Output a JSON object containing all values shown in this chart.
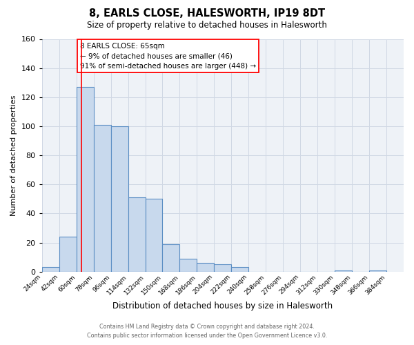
{
  "title": "8, EARLS CLOSE, HALESWORTH, IP19 8DT",
  "subtitle": "Size of property relative to detached houses in Halesworth",
  "xlabel": "Distribution of detached houses by size in Halesworth",
  "ylabel": "Number of detached properties",
  "bin_labels": [
    "24sqm",
    "42sqm",
    "60sqm",
    "78sqm",
    "96sqm",
    "114sqm",
    "132sqm",
    "150sqm",
    "168sqm",
    "186sqm",
    "204sqm",
    "222sqm",
    "240sqm",
    "258sqm",
    "276sqm",
    "294sqm",
    "312sqm",
    "330sqm",
    "348sqm",
    "366sqm",
    "384sqm"
  ],
  "bin_edges": [
    24,
    42,
    60,
    78,
    96,
    114,
    132,
    150,
    168,
    186,
    204,
    222,
    240,
    258,
    276,
    294,
    312,
    330,
    348,
    366,
    384
  ],
  "bar_heights": [
    3,
    24,
    127,
    101,
    100,
    51,
    50,
    19,
    9,
    6,
    5,
    3,
    0,
    0,
    0,
    0,
    0,
    1,
    0,
    1
  ],
  "bar_color": "#c8d9ed",
  "bar_edge_color": "#5b8ec4",
  "grid_color": "#d0d8e4",
  "background_color": "#eef2f7",
  "red_line_x": 65,
  "ylim": [
    0,
    160
  ],
  "yticks": [
    0,
    20,
    40,
    60,
    80,
    100,
    120,
    140,
    160
  ],
  "annotation_text": "8 EARLS CLOSE: 65sqm\n← 9% of detached houses are smaller (46)\n91% of semi-detached houses are larger (448) →",
  "footer_line1": "Contains HM Land Registry data © Crown copyright and database right 2024.",
  "footer_line2": "Contains public sector information licensed under the Open Government Licence v3.0."
}
